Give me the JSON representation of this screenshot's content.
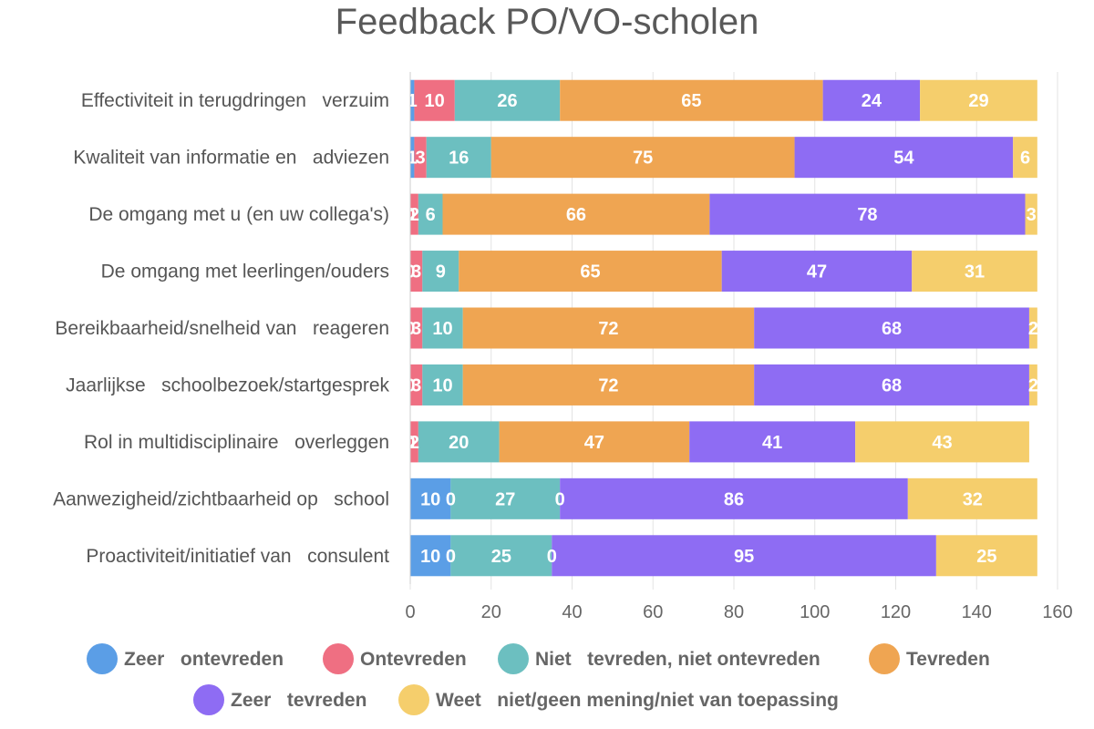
{
  "chart_data": {
    "type": "bar",
    "orientation": "horizontal",
    "stacked": true,
    "title": "Feedback PO/VO-scholen",
    "xlim": [
      0,
      160
    ],
    "xticks": [
      0,
      20,
      40,
      60,
      80,
      100,
      120,
      140,
      160
    ],
    "grid": true,
    "legend_position": "bottom",
    "categories": [
      "Effectiviteit in terugdringen   verzuim",
      "Kwaliteit van informatie en   adviezen",
      "De omgang met u (en uw collega's)",
      "De omgang met leerlingen/ouders",
      "Bereikbaarheid/snelheid van   reageren",
      "Jaarlijkse   schoolbezoek/startgesprek",
      "Rol in multidisciplinaire   overleggen",
      "Aanwezigheid/zichtbaarheid op   school",
      "Proactiviteit/initiatief van   consulent"
    ],
    "series": [
      {
        "name": "Zeer   ontevreden",
        "color": "#5b9ee6",
        "values": [
          1,
          1,
          0,
          0,
          0,
          0,
          0,
          10,
          10
        ]
      },
      {
        "name": "Ontevreden",
        "color": "#ef6f82",
        "values": [
          10,
          3,
          2,
          3,
          3,
          3,
          2,
          0,
          0
        ]
      },
      {
        "name": "Niet   tevreden, niet ontevreden",
        "color": "#6cbfc0",
        "values": [
          26,
          16,
          6,
          9,
          10,
          10,
          20,
          27,
          25
        ]
      },
      {
        "name": "Tevreden",
        "color": "#efa552",
        "values": [
          65,
          75,
          66,
          65,
          72,
          72,
          47,
          0,
          0
        ]
      },
      {
        "name": "Zeer   tevreden",
        "color": "#8e6cf3",
        "values": [
          24,
          54,
          78,
          47,
          68,
          68,
          41,
          86,
          95
        ]
      },
      {
        "name": "Weet   niet/geen mening/niet van toepassing",
        "color": "#f5ce6c",
        "values": [
          29,
          6,
          3,
          31,
          2,
          2,
          43,
          32,
          25
        ]
      }
    ]
  }
}
